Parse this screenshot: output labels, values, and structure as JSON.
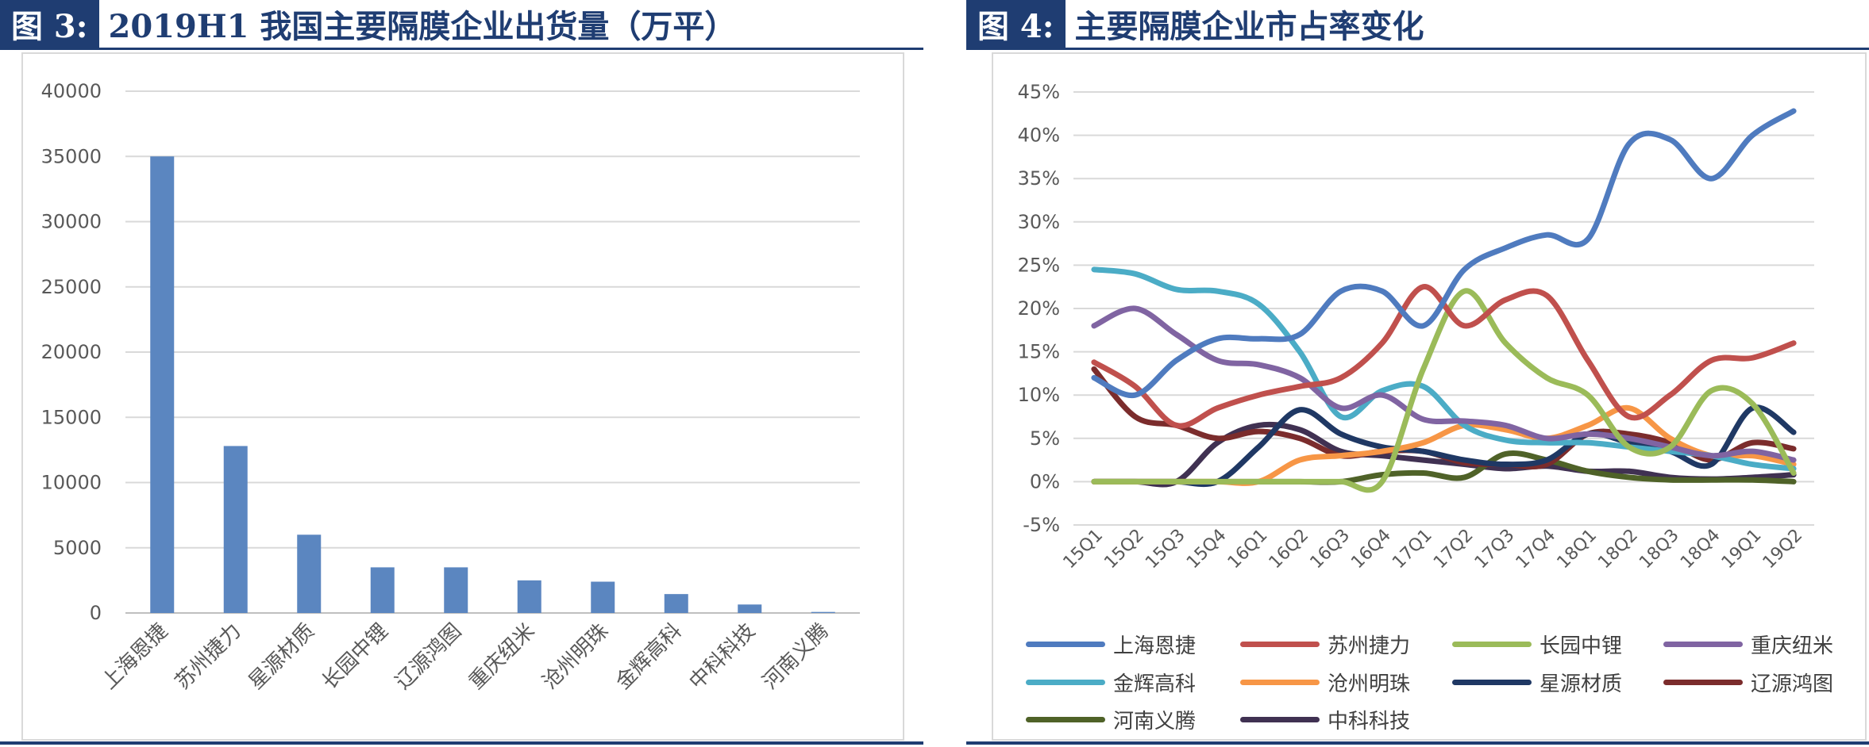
{
  "left_panel": {
    "tag": "图 3:",
    "title": "2019H1 我国主要隔膜企业出货量（万平）"
  },
  "right_panel": {
    "tag": "图 4:",
    "title": "主要隔膜企业市占率变化"
  },
  "chart_data": [
    {
      "type": "bar",
      "categories": [
        "上海恩捷",
        "苏州捷力",
        "星源材质",
        "长园中锂",
        "辽源鸿图",
        "重庆纽米",
        "沧州明珠",
        "金辉高科",
        "中科科技",
        "河南义腾"
      ],
      "values": [
        35000,
        12800,
        6000,
        3500,
        3500,
        2500,
        2400,
        1450,
        650,
        80
      ],
      "ylim": [
        0,
        40000
      ],
      "yticks": [
        0,
        5000,
        10000,
        15000,
        20000,
        25000,
        30000,
        35000,
        40000
      ],
      "ytick_labels": [
        "0",
        "5000",
        "10000",
        "15000",
        "20000",
        "25000",
        "30000",
        "35000",
        "40000"
      ],
      "color": "#5b86c0",
      "grid": true,
      "legend": "none"
    },
    {
      "type": "line",
      "x": [
        "15Q1",
        "15Q2",
        "15Q3",
        "15Q4",
        "16Q1",
        "16Q2",
        "16Q3",
        "16Q4",
        "17Q1",
        "17Q2",
        "17Q3",
        "17Q4",
        "18Q1",
        "18Q2",
        "18Q3",
        "18Q4",
        "19Q1",
        "19Q2"
      ],
      "ylim": [
        -0.05,
        0.45
      ],
      "yticks": [
        -0.05,
        0,
        0.05,
        0.1,
        0.15,
        0.2,
        0.25,
        0.3,
        0.35,
        0.4,
        0.45
      ],
      "ytick_labels": [
        "-5%",
        "0%",
        "5%",
        "10%",
        "15%",
        "20%",
        "25%",
        "30%",
        "35%",
        "40%",
        "45%"
      ],
      "grid": true,
      "legend": "bottom",
      "series": [
        {
          "name": "上海恩捷",
          "color": "#4f7bbf",
          "values": [
            0.12,
            0.1,
            0.14,
            0.165,
            0.165,
            0.17,
            0.22,
            0.22,
            0.18,
            0.245,
            0.27,
            0.285,
            0.28,
            0.39,
            0.395,
            0.35,
            0.4,
            0.428
          ]
        },
        {
          "name": "苏州捷力",
          "color": "#c0504d",
          "values": [
            0.138,
            0.11,
            0.065,
            0.085,
            0.1,
            0.11,
            0.12,
            0.16,
            0.225,
            0.18,
            0.21,
            0.215,
            0.14,
            0.075,
            0.1,
            0.14,
            0.143,
            0.16
          ]
        },
        {
          "name": "长园中锂",
          "color": "#9bbb59",
          "values": [
            0.0,
            0.0,
            0.0,
            0.0,
            0.0,
            0.0,
            0.0,
            0.0,
            0.13,
            0.22,
            0.16,
            0.12,
            0.1,
            0.04,
            0.04,
            0.105,
            0.09,
            0.01
          ]
        },
        {
          "name": "重庆纽米",
          "color": "#8064a2",
          "values": [
            0.18,
            0.2,
            0.17,
            0.14,
            0.135,
            0.12,
            0.085,
            0.1,
            0.072,
            0.07,
            0.065,
            0.05,
            0.055,
            0.05,
            0.04,
            0.03,
            0.035,
            0.025
          ]
        },
        {
          "name": "金辉高科",
          "color": "#4bacc6",
          "values": [
            0.245,
            0.24,
            0.222,
            0.22,
            0.205,
            0.15,
            0.075,
            0.105,
            0.11,
            0.065,
            0.048,
            0.045,
            0.045,
            0.04,
            0.035,
            0.03,
            0.02,
            0.015
          ]
        },
        {
          "name": "沧州明珠",
          "color": "#f79646",
          "values": [
            0.0,
            0.0,
            0.0,
            0.0,
            0.0,
            0.025,
            0.03,
            0.035,
            0.045,
            0.065,
            0.06,
            0.05,
            0.065,
            0.085,
            0.05,
            0.03,
            0.03,
            0.02
          ]
        },
        {
          "name": "星源材质",
          "color": "#1f3864",
          "values": [
            0.0,
            0.0,
            0.0,
            0.0,
            0.04,
            0.083,
            0.055,
            0.04,
            0.035,
            0.025,
            0.02,
            0.025,
            0.055,
            0.045,
            0.035,
            0.02,
            0.085,
            0.057
          ]
        },
        {
          "name": "辽源鸿图",
          "color": "#7b2c2c",
          "values": [
            0.13,
            0.075,
            0.065,
            0.05,
            0.058,
            0.05,
            0.03,
            0.035,
            0.035,
            0.022,
            0.02,
            0.02,
            0.055,
            0.055,
            0.045,
            0.025,
            0.045,
            0.038
          ]
        },
        {
          "name": "河南义腾",
          "color": "#4f6228",
          "values": [
            0.0,
            0.0,
            0.0,
            0.0,
            0.0,
            0.0,
            0.0,
            0.008,
            0.01,
            0.005,
            0.032,
            0.025,
            0.012,
            0.005,
            0.002,
            0.002,
            0.002,
            0.0
          ]
        },
        {
          "name": "中科科技",
          "color": "#403152",
          "values": [
            0.0,
            0.0,
            0.0,
            0.045,
            0.065,
            0.06,
            0.035,
            0.03,
            0.025,
            0.02,
            0.015,
            0.018,
            0.012,
            0.012,
            0.005,
            0.003,
            0.005,
            0.008
          ]
        }
      ]
    }
  ]
}
